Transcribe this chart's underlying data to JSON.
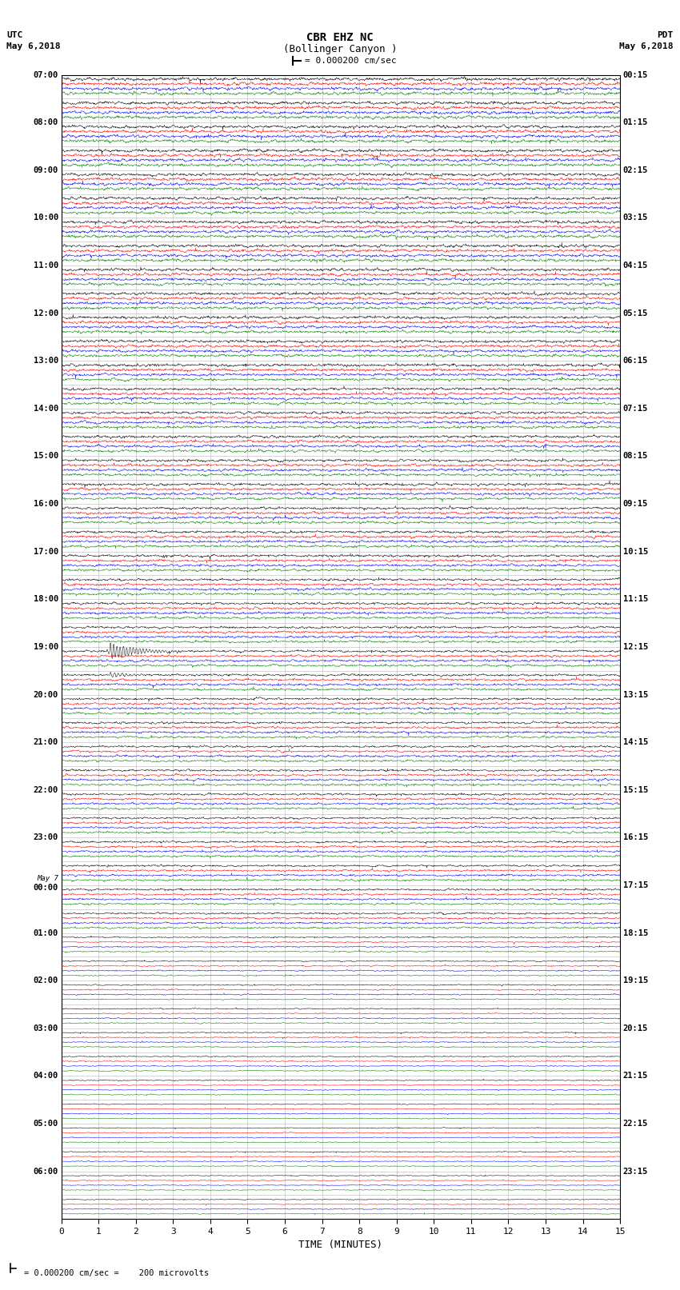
{
  "title_line1": "CBR EHZ NC",
  "title_line2": "(Bollinger Canyon )",
  "scale_label": "= 0.000200 cm/sec",
  "left_header_line1": "UTC",
  "left_header_line2": "May 6,2018",
  "right_header_line1": "PDT",
  "right_header_line2": "May 6,2018",
  "bottom_label": "TIME (MINUTES)",
  "bottom_note": "= 0.000200 cm/sec =    200 microvolts",
  "total_rows": 48,
  "traces_per_row": 4,
  "colors": [
    "black",
    "red",
    "blue",
    "green"
  ],
  "background_color": "white",
  "fig_width": 8.5,
  "fig_height": 16.13,
  "noise_scale_early": 0.03,
  "noise_scale_late": 0.008,
  "transition_row": 36,
  "left_labels_utc": [
    "07:00",
    "08:00",
    "09:00",
    "10:00",
    "11:00",
    "12:00",
    "13:00",
    "14:00",
    "15:00",
    "16:00",
    "17:00",
    "18:00",
    "19:00",
    "20:00",
    "21:00",
    "22:00",
    "23:00",
    "May 7\n00:00",
    "01:00",
    "02:00",
    "03:00",
    "04:00",
    "05:00",
    "06:00"
  ],
  "right_labels_pdt": [
    "00:15",
    "01:15",
    "02:15",
    "03:15",
    "04:15",
    "05:15",
    "06:15",
    "07:15",
    "08:15",
    "09:15",
    "10:15",
    "11:15",
    "12:15",
    "13:15",
    "14:15",
    "15:15",
    "16:15",
    "17:15",
    "18:15",
    "19:15",
    "20:15",
    "21:15",
    "22:15",
    "23:15"
  ],
  "grid_color": "#999999",
  "xmin": 0,
  "xmax": 15,
  "xticks": [
    0,
    1,
    2,
    3,
    4,
    5,
    6,
    7,
    8,
    9,
    10,
    11,
    12,
    13,
    14,
    15
  ],
  "eq_row": 24,
  "eq_minute": 1.3,
  "eq_amplitude": 0.35,
  "eq2_row": 25,
  "eq2_minute": 1.3,
  "eq2_amplitude": 0.12,
  "small_eq_row": 32,
  "small_eq_minute": 2.5,
  "small_eq_amplitude": 0.04
}
